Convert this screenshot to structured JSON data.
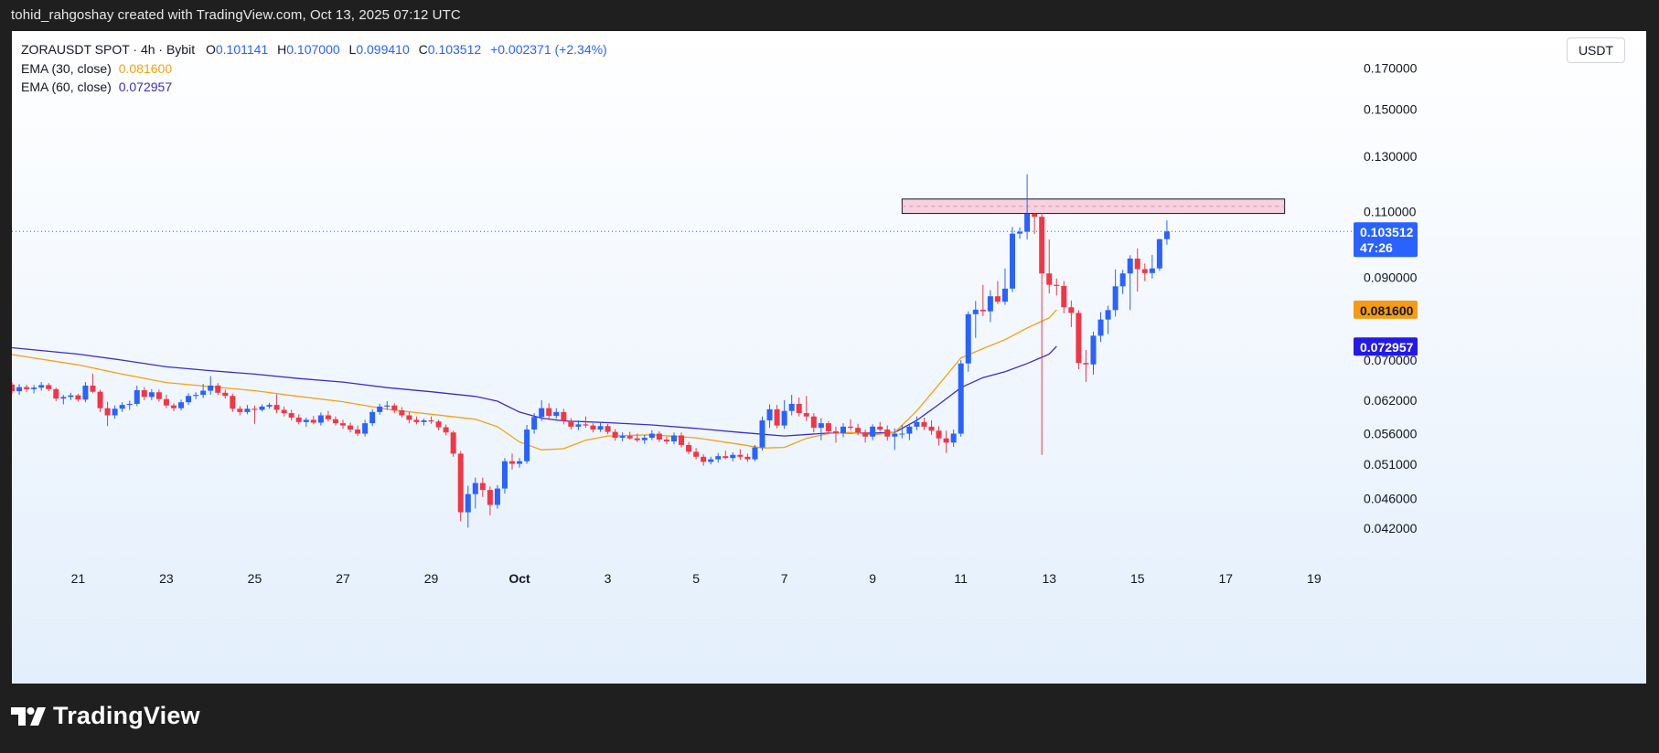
{
  "header": {
    "credit": "tohid_rahgoshay created with TradingView.com, Oct 13, 2025 07:12 UTC"
  },
  "legend": {
    "symbol": "ZORAUSDT SPOT · 4h · Bybit",
    "o_label": "O",
    "o_value": "0.101141",
    "h_label": "H",
    "h_value": "0.107000",
    "l_label": "L",
    "l_value": "0.099410",
    "c_label": "C",
    "c_value": "0.103512",
    "change": "+0.002371 (+2.34%)",
    "ema30_label": "EMA (30, close)",
    "ema30_value": "0.081600",
    "ema60_label": "EMA (60, close)",
    "ema60_value": "0.072957"
  },
  "currency_button": "USDT",
  "brand": {
    "name": "TradingView"
  },
  "colors": {
    "up": "#2962ff",
    "down": "#f23645",
    "ema30": "#f5a014",
    "ema60": "#3a2ec4",
    "zone_fill": "#f6c9d9",
    "zone_stroke": "#131722"
  },
  "chart_data": {
    "type": "candlestick",
    "y_scale": "log",
    "ylim": [
      0.0375,
      0.185
    ],
    "xlim": [
      "2025-09-19T12:00",
      "2025-10-19T16:00"
    ],
    "y_ticks": [
      "0.170000",
      "0.150000",
      "0.130000",
      "0.110000",
      "0.090000",
      "0.070000",
      "0.062000",
      "0.056000",
      "0.051000",
      "0.046000",
      "0.042000"
    ],
    "x_ticks": [
      "21",
      "23",
      "25",
      "27",
      "29",
      "Oct",
      "3",
      "5",
      "7",
      "9",
      "11",
      "13",
      "15",
      "17",
      "19"
    ],
    "last_price": "0.103512",
    "countdown": "47:26",
    "ema30_label": "0.081600",
    "ema60_label": "0.072957",
    "resistance_zone": {
      "low": 0.1093,
      "high": 0.1142,
      "from": "2025-10-09T16:00",
      "to": "2025-10-18T08:00"
    },
    "candles": [
      [
        0.065,
        0.0655,
        0.0631,
        0.0637
      ],
      [
        0.0637,
        0.0651,
        0.063,
        0.0645
      ],
      [
        0.0645,
        0.065,
        0.0635,
        0.0641
      ],
      [
        0.0641,
        0.0649,
        0.0633,
        0.0644
      ],
      [
        0.0644,
        0.0655,
        0.0638,
        0.0649
      ],
      [
        0.0649,
        0.0653,
        0.0637,
        0.0641
      ],
      [
        0.0641,
        0.0644,
        0.0618,
        0.0623
      ],
      [
        0.0623,
        0.063,
        0.0612,
        0.0626
      ],
      [
        0.0626,
        0.0634,
        0.062,
        0.0629
      ],
      [
        0.0629,
        0.0632,
        0.0617,
        0.0621
      ],
      [
        0.0621,
        0.0655,
        0.0616,
        0.0648
      ],
      [
        0.0648,
        0.0672,
        0.0634,
        0.0636
      ],
      [
        0.0636,
        0.064,
        0.0598,
        0.0605
      ],
      [
        0.0605,
        0.0617,
        0.0573,
        0.0592
      ],
      [
        0.0592,
        0.061,
        0.0586,
        0.0604
      ],
      [
        0.0604,
        0.0616,
        0.0598,
        0.0611
      ],
      [
        0.0611,
        0.0619,
        0.0602,
        0.0613
      ],
      [
        0.0613,
        0.0648,
        0.0609,
        0.0639
      ],
      [
        0.0639,
        0.0645,
        0.062,
        0.0626
      ],
      [
        0.0626,
        0.0641,
        0.062,
        0.0635
      ],
      [
        0.0635,
        0.064,
        0.0617,
        0.0622
      ],
      [
        0.0622,
        0.063,
        0.0605,
        0.061
      ],
      [
        0.061,
        0.0614,
        0.06,
        0.0605
      ],
      [
        0.0605,
        0.0621,
        0.0601,
        0.0616
      ],
      [
        0.0616,
        0.0633,
        0.0611,
        0.0628
      ],
      [
        0.0628,
        0.0635,
        0.0622,
        0.063
      ],
      [
        0.063,
        0.0651,
        0.0624,
        0.0638
      ],
      [
        0.0638,
        0.0667,
        0.063,
        0.0648
      ],
      [
        0.0648,
        0.0653,
        0.0629,
        0.0634
      ],
      [
        0.0634,
        0.064,
        0.0623,
        0.0628
      ],
      [
        0.0628,
        0.0632,
        0.0598,
        0.0604
      ],
      [
        0.0604,
        0.0609,
        0.0592,
        0.0598
      ],
      [
        0.0598,
        0.0611,
        0.0594,
        0.0604
      ],
      [
        0.0604,
        0.061,
        0.0577,
        0.0602
      ],
      [
        0.0602,
        0.0612,
        0.0599,
        0.0608
      ],
      [
        0.0608,
        0.0615,
        0.0604,
        0.0611
      ],
      [
        0.0611,
        0.0631,
        0.0596,
        0.0602
      ],
      [
        0.0602,
        0.0608,
        0.059,
        0.0596
      ],
      [
        0.0596,
        0.0602,
        0.0583,
        0.0588
      ],
      [
        0.0588,
        0.0594,
        0.0576,
        0.058
      ],
      [
        0.058,
        0.0588,
        0.0572,
        0.0584
      ],
      [
        0.0584,
        0.0591,
        0.0576,
        0.0579
      ],
      [
        0.0579,
        0.0597,
        0.0574,
        0.0592
      ],
      [
        0.0592,
        0.06,
        0.0581,
        0.0585
      ],
      [
        0.0585,
        0.059,
        0.0574,
        0.0578
      ],
      [
        0.0578,
        0.0584,
        0.0568,
        0.0574
      ],
      [
        0.0574,
        0.0579,
        0.0562,
        0.0567
      ],
      [
        0.0567,
        0.0574,
        0.0556,
        0.056
      ],
      [
        0.056,
        0.0584,
        0.0555,
        0.0578
      ],
      [
        0.0578,
        0.0603,
        0.0573,
        0.0598
      ],
      [
        0.0598,
        0.0613,
        0.0593,
        0.0608
      ],
      [
        0.0608,
        0.0618,
        0.0602,
        0.061
      ],
      [
        0.061,
        0.0614,
        0.0596,
        0.0601
      ],
      [
        0.0601,
        0.0607,
        0.0588,
        0.0592
      ],
      [
        0.0592,
        0.0598,
        0.0578,
        0.0584
      ],
      [
        0.0584,
        0.059,
        0.0576,
        0.058
      ],
      [
        0.058,
        0.0586,
        0.0574,
        0.0583
      ],
      [
        0.0583,
        0.059,
        0.0577,
        0.0581
      ],
      [
        0.0581,
        0.0584,
        0.0566,
        0.0571
      ],
      [
        0.0571,
        0.0576,
        0.0557,
        0.0562
      ],
      [
        0.0562,
        0.0565,
        0.0522,
        0.0527
      ],
      [
        0.0527,
        0.0531,
        0.0429,
        0.0441
      ],
      [
        0.0441,
        0.0478,
        0.0421,
        0.0466
      ],
      [
        0.0466,
        0.049,
        0.0446,
        0.0482
      ],
      [
        0.0482,
        0.049,
        0.0462,
        0.0472
      ],
      [
        0.0472,
        0.0477,
        0.0437,
        0.0451
      ],
      [
        0.0451,
        0.0479,
        0.0446,
        0.0474
      ],
      [
        0.0474,
        0.052,
        0.0467,
        0.0515
      ],
      [
        0.0515,
        0.0527,
        0.0502,
        0.0511
      ],
      [
        0.0511,
        0.052,
        0.0505,
        0.0515
      ],
      [
        0.0515,
        0.0575,
        0.0511,
        0.0567
      ],
      [
        0.0567,
        0.0596,
        0.056,
        0.0589
      ],
      [
        0.0589,
        0.062,
        0.0582,
        0.0605
      ],
      [
        0.0605,
        0.0614,
        0.0584,
        0.0591
      ],
      [
        0.0591,
        0.0605,
        0.0586,
        0.0598
      ],
      [
        0.0598,
        0.0604,
        0.0576,
        0.0582
      ],
      [
        0.0582,
        0.0587,
        0.0567,
        0.0572
      ],
      [
        0.0572,
        0.0583,
        0.0566,
        0.0576
      ],
      [
        0.0576,
        0.059,
        0.057,
        0.0574
      ],
      [
        0.0574,
        0.0578,
        0.0562,
        0.0567
      ],
      [
        0.0567,
        0.058,
        0.0563,
        0.0573
      ],
      [
        0.0573,
        0.0577,
        0.0559,
        0.0563
      ],
      [
        0.0563,
        0.0568,
        0.0548,
        0.0553
      ],
      [
        0.0553,
        0.0562,
        0.0547,
        0.0556
      ],
      [
        0.0556,
        0.0563,
        0.055,
        0.0552
      ],
      [
        0.0552,
        0.056,
        0.0546,
        0.0549
      ],
      [
        0.0549,
        0.0558,
        0.0543,
        0.0553
      ],
      [
        0.0553,
        0.0566,
        0.0549,
        0.056
      ],
      [
        0.056,
        0.0564,
        0.0546,
        0.055
      ],
      [
        0.055,
        0.0555,
        0.0542,
        0.0547
      ],
      [
        0.0547,
        0.0562,
        0.0542,
        0.0557
      ],
      [
        0.0557,
        0.0562,
        0.0537,
        0.0541
      ],
      [
        0.0541,
        0.0546,
        0.0526,
        0.053
      ],
      [
        0.053,
        0.0536,
        0.0518,
        0.0522
      ],
      [
        0.0522,
        0.0526,
        0.0508,
        0.0514
      ],
      [
        0.0514,
        0.0522,
        0.051,
        0.0518
      ],
      [
        0.0518,
        0.0528,
        0.0513,
        0.0523
      ],
      [
        0.0523,
        0.0532,
        0.0518,
        0.052
      ],
      [
        0.052,
        0.0529,
        0.0515,
        0.0525
      ],
      [
        0.0525,
        0.0534,
        0.0517,
        0.0522
      ],
      [
        0.0522,
        0.0527,
        0.0514,
        0.0518
      ],
      [
        0.0518,
        0.0541,
        0.0515,
        0.0537
      ],
      [
        0.0537,
        0.059,
        0.0532,
        0.0583
      ],
      [
        0.0583,
        0.0612,
        0.057,
        0.0603
      ],
      [
        0.0603,
        0.0611,
        0.0569,
        0.0574
      ],
      [
        0.0574,
        0.062,
        0.0568,
        0.06
      ],
      [
        0.06,
        0.063,
        0.0592,
        0.0613
      ],
      [
        0.0613,
        0.0625,
        0.059,
        0.0596
      ],
      [
        0.0596,
        0.0628,
        0.0582,
        0.059
      ],
      [
        0.059,
        0.0596,
        0.0562,
        0.057
      ],
      [
        0.057,
        0.0587,
        0.0549,
        0.0578
      ],
      [
        0.0578,
        0.0582,
        0.0559,
        0.0564
      ],
      [
        0.0564,
        0.0572,
        0.0545,
        0.0561
      ],
      [
        0.0561,
        0.0578,
        0.0554,
        0.0572
      ],
      [
        0.0572,
        0.0585,
        0.0566,
        0.057
      ],
      [
        0.057,
        0.0577,
        0.0557,
        0.0562
      ],
      [
        0.0562,
        0.0567,
        0.0545,
        0.0555
      ],
      [
        0.0555,
        0.0576,
        0.0549,
        0.0572
      ],
      [
        0.0572,
        0.058,
        0.0563,
        0.0567
      ],
      [
        0.0567,
        0.0574,
        0.0548,
        0.0555
      ],
      [
        0.0555,
        0.0569,
        0.0533,
        0.056
      ],
      [
        0.056,
        0.0575,
        0.0552,
        0.056
      ],
      [
        0.056,
        0.0577,
        0.0549,
        0.0572
      ],
      [
        0.0572,
        0.059,
        0.0566,
        0.058
      ],
      [
        0.058,
        0.0588,
        0.0566,
        0.0572
      ],
      [
        0.0572,
        0.0583,
        0.0558,
        0.0565
      ],
      [
        0.0565,
        0.0573,
        0.054,
        0.0552
      ],
      [
        0.0552,
        0.0565,
        0.0528,
        0.0545
      ],
      [
        0.0545,
        0.0567,
        0.0538,
        0.056
      ],
      [
        0.056,
        0.07,
        0.0555,
        0.0693
      ],
      [
        0.0693,
        0.0812,
        0.0676,
        0.0805
      ],
      [
        0.0805,
        0.0838,
        0.0749,
        0.0816
      ],
      [
        0.0816,
        0.088,
        0.08,
        0.0812
      ],
      [
        0.0812,
        0.0866,
        0.0786,
        0.085
      ],
      [
        0.085,
        0.089,
        0.083,
        0.0836
      ],
      [
        0.0836,
        0.0925,
        0.0828,
        0.087
      ],
      [
        0.087,
        0.1049,
        0.0861,
        0.1028
      ],
      [
        0.1028,
        0.1048,
        0.1012,
        0.1034
      ],
      [
        0.1034,
        0.1231,
        0.101,
        0.1092
      ],
      [
        0.1092,
        0.1095,
        0.1027,
        0.1082
      ],
      [
        0.1082,
        0.1095,
        0.0525,
        0.0911
      ],
      [
        0.0911,
        0.101,
        0.0857,
        0.088
      ],
      [
        0.088,
        0.0897,
        0.0852,
        0.0877
      ],
      [
        0.0877,
        0.089,
        0.0807,
        0.0822
      ],
      [
        0.0822,
        0.0839,
        0.0774,
        0.0808
      ],
      [
        0.0808,
        0.0815,
        0.0681,
        0.0694
      ],
      [
        0.0694,
        0.0722,
        0.0655,
        0.0691
      ],
      [
        0.0691,
        0.0763,
        0.067,
        0.0754
      ],
      [
        0.0754,
        0.081,
        0.074,
        0.0792
      ],
      [
        0.0792,
        0.0826,
        0.0758,
        0.0815
      ],
      [
        0.0815,
        0.0922,
        0.0799,
        0.0876
      ],
      [
        0.0876,
        0.0921,
        0.0856,
        0.0911
      ],
      [
        0.0911,
        0.0963,
        0.0815,
        0.0953
      ],
      [
        0.0953,
        0.0983,
        0.0862,
        0.0923
      ],
      [
        0.0923,
        0.0939,
        0.089,
        0.0912
      ],
      [
        0.0912,
        0.0964,
        0.0897,
        0.0925
      ],
      [
        0.0925,
        0.1012,
        0.0918,
        0.1011
      ],
      [
        0.1011,
        0.107,
        0.0994,
        0.1035
      ]
    ],
    "series": [
      {
        "name": "EMA (30, close)",
        "points": [
          [
            "2025-09-19T12:00",
            0.0712
          ],
          [
            "2025-09-21T00:00",
            0.069
          ],
          [
            "2025-09-22T00:00",
            0.0671
          ],
          [
            "2025-09-23T00:00",
            0.0654
          ],
          [
            "2025-09-24T00:00",
            0.0646
          ],
          [
            "2025-09-25T00:00",
            0.0638
          ],
          [
            "2025-09-26T00:00",
            0.0627
          ],
          [
            "2025-09-27T00:00",
            0.0617
          ],
          [
            "2025-09-28T00:00",
            0.0603
          ],
          [
            "2025-09-29T00:00",
            0.0594
          ],
          [
            "2025-09-30T00:00",
            0.0585
          ],
          [
            "2025-09-30T12:00",
            0.0572
          ],
          [
            "2025-10-01T00:00",
            0.0546
          ],
          [
            "2025-10-01T12:00",
            0.0533
          ],
          [
            "2025-10-02T00:00",
            0.0535
          ],
          [
            "2025-10-02T12:00",
            0.0549
          ],
          [
            "2025-10-03T00:00",
            0.0556
          ],
          [
            "2025-10-04T00:00",
            0.0558
          ],
          [
            "2025-10-05T00:00",
            0.0553
          ],
          [
            "2025-10-06T00:00",
            0.0542
          ],
          [
            "2025-10-06T12:00",
            0.0536
          ],
          [
            "2025-10-07T00:00",
            0.0537
          ],
          [
            "2025-10-07T12:00",
            0.0552
          ],
          [
            "2025-10-08T00:00",
            0.056
          ],
          [
            "2025-10-08T12:00",
            0.0562
          ],
          [
            "2025-10-09T00:00",
            0.0558
          ],
          [
            "2025-10-09T12:00",
            0.0562
          ],
          [
            "2025-10-10T00:00",
            0.06
          ],
          [
            "2025-10-10T12:00",
            0.065
          ],
          [
            "2025-10-11T00:00",
            0.0705
          ],
          [
            "2025-10-11T12:00",
            0.0725
          ],
          [
            "2025-10-12T00:00",
            0.0745
          ],
          [
            "2025-10-12T12:00",
            0.0772
          ],
          [
            "2025-10-13T00:00",
            0.0796
          ],
          [
            "2025-10-13T04:00",
            0.0816
          ]
        ]
      },
      {
        "name": "EMA (60, close)",
        "points": [
          [
            "2025-09-19T12:00",
            0.0727
          ],
          [
            "2025-09-21T00:00",
            0.0713
          ],
          [
            "2025-09-22T00:00",
            0.07
          ],
          [
            "2025-09-23T00:00",
            0.0686
          ],
          [
            "2025-09-24T00:00",
            0.0678
          ],
          [
            "2025-09-25T00:00",
            0.0671
          ],
          [
            "2025-09-26T00:00",
            0.0662
          ],
          [
            "2025-09-27T00:00",
            0.0655
          ],
          [
            "2025-09-28T00:00",
            0.0644
          ],
          [
            "2025-09-29T00:00",
            0.0636
          ],
          [
            "2025-09-30T00:00",
            0.0627
          ],
          [
            "2025-09-30T12:00",
            0.0618
          ],
          [
            "2025-10-01T00:00",
            0.0598
          ],
          [
            "2025-10-01T12:00",
            0.0587
          ],
          [
            "2025-10-02T00:00",
            0.0582
          ],
          [
            "2025-10-03T00:00",
            0.0579
          ],
          [
            "2025-10-04T00:00",
            0.0575
          ],
          [
            "2025-10-05T00:00",
            0.0569
          ],
          [
            "2025-10-06T00:00",
            0.0562
          ],
          [
            "2025-10-07T00:00",
            0.0556
          ],
          [
            "2025-10-08T00:00",
            0.0561
          ],
          [
            "2025-10-09T00:00",
            0.0561
          ],
          [
            "2025-10-09T12:00",
            0.0562
          ],
          [
            "2025-10-10T00:00",
            0.0583
          ],
          [
            "2025-10-10T12:00",
            0.0612
          ],
          [
            "2025-10-11T00:00",
            0.0644
          ],
          [
            "2025-10-11T12:00",
            0.0664
          ],
          [
            "2025-10-12T00:00",
            0.0676
          ],
          [
            "2025-10-12T12:00",
            0.0693
          ],
          [
            "2025-10-13T00:00",
            0.0713
          ],
          [
            "2025-10-13T04:00",
            0.073
          ]
        ]
      }
    ]
  }
}
